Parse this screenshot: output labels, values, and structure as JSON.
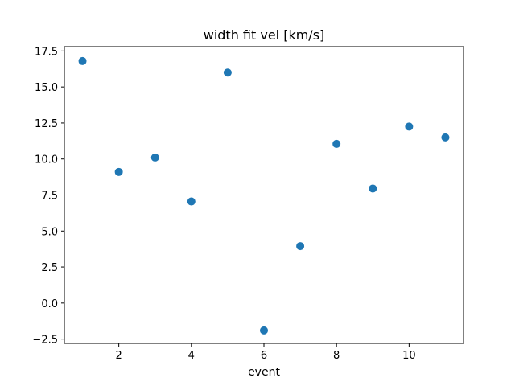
{
  "chart_data": {
    "type": "scatter",
    "title": "width fit vel [km/s]",
    "xlabel": "event",
    "ylabel": "",
    "xlim": [
      0.5,
      11.5
    ],
    "ylim": [
      -2.8,
      17.8
    ],
    "xticks": [
      2,
      4,
      6,
      8,
      10
    ],
    "yticks": [
      -2.5,
      0.0,
      2.5,
      5.0,
      7.5,
      10.0,
      12.5,
      15.0,
      17.5
    ],
    "xtick_labels": [
      "2",
      "4",
      "6",
      "8",
      "10"
    ],
    "ytick_labels": [
      "−2.5",
      "0.0",
      "2.5",
      "5.0",
      "7.5",
      "10.0",
      "12.5",
      "15.0",
      "17.5"
    ],
    "grid": false,
    "legend": "none",
    "marker_color": "#1f77b4",
    "series": [
      {
        "x": [
          1,
          2,
          3,
          4,
          5,
          6,
          7,
          8,
          9,
          10,
          11
        ],
        "y": [
          16.8,
          9.1,
          10.1,
          7.05,
          16.0,
          -1.9,
          3.95,
          11.05,
          7.95,
          12.25,
          11.5
        ]
      }
    ]
  }
}
